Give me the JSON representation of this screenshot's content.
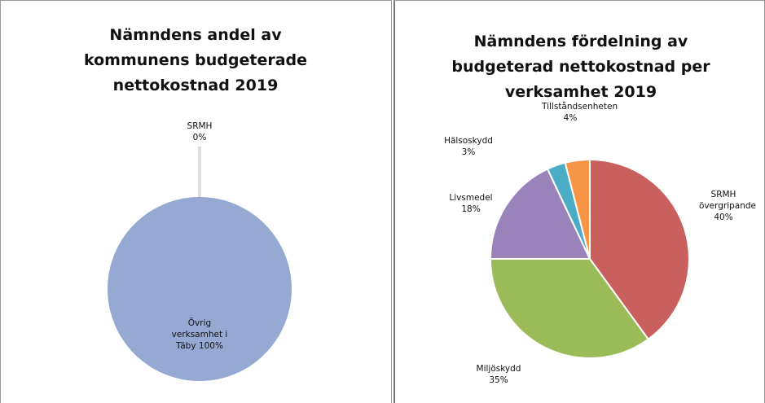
{
  "chart_data": [
    {
      "type": "pie",
      "title": "Nämndens andel av kommunens budgeterade nettokostnad 2019",
      "categories": [
        "SRMH",
        "Övrig verksamhet i Täby"
      ],
      "values": [
        0,
        100
      ],
      "value_labels": [
        "0%",
        "100%"
      ],
      "colors": [
        "#95a9d3",
        "#95a9d3"
      ]
    },
    {
      "type": "pie",
      "title": "Nämndens fördelning av budgeterad nettokostnad per verksamhet 2019",
      "categories": [
        "SRMH övergripande",
        "Miljöskydd",
        "Livsmedel",
        "Hälsoskydd",
        "Tillståndsenheten"
      ],
      "values": [
        40,
        35,
        18,
        3,
        4
      ],
      "value_labels": [
        "40%",
        "35%",
        "18%",
        "3%",
        "4%"
      ],
      "colors": [
        "#c9605d",
        "#9bbb59",
        "#9a83bb",
        "#4bacc6",
        "#f79646"
      ]
    }
  ]
}
